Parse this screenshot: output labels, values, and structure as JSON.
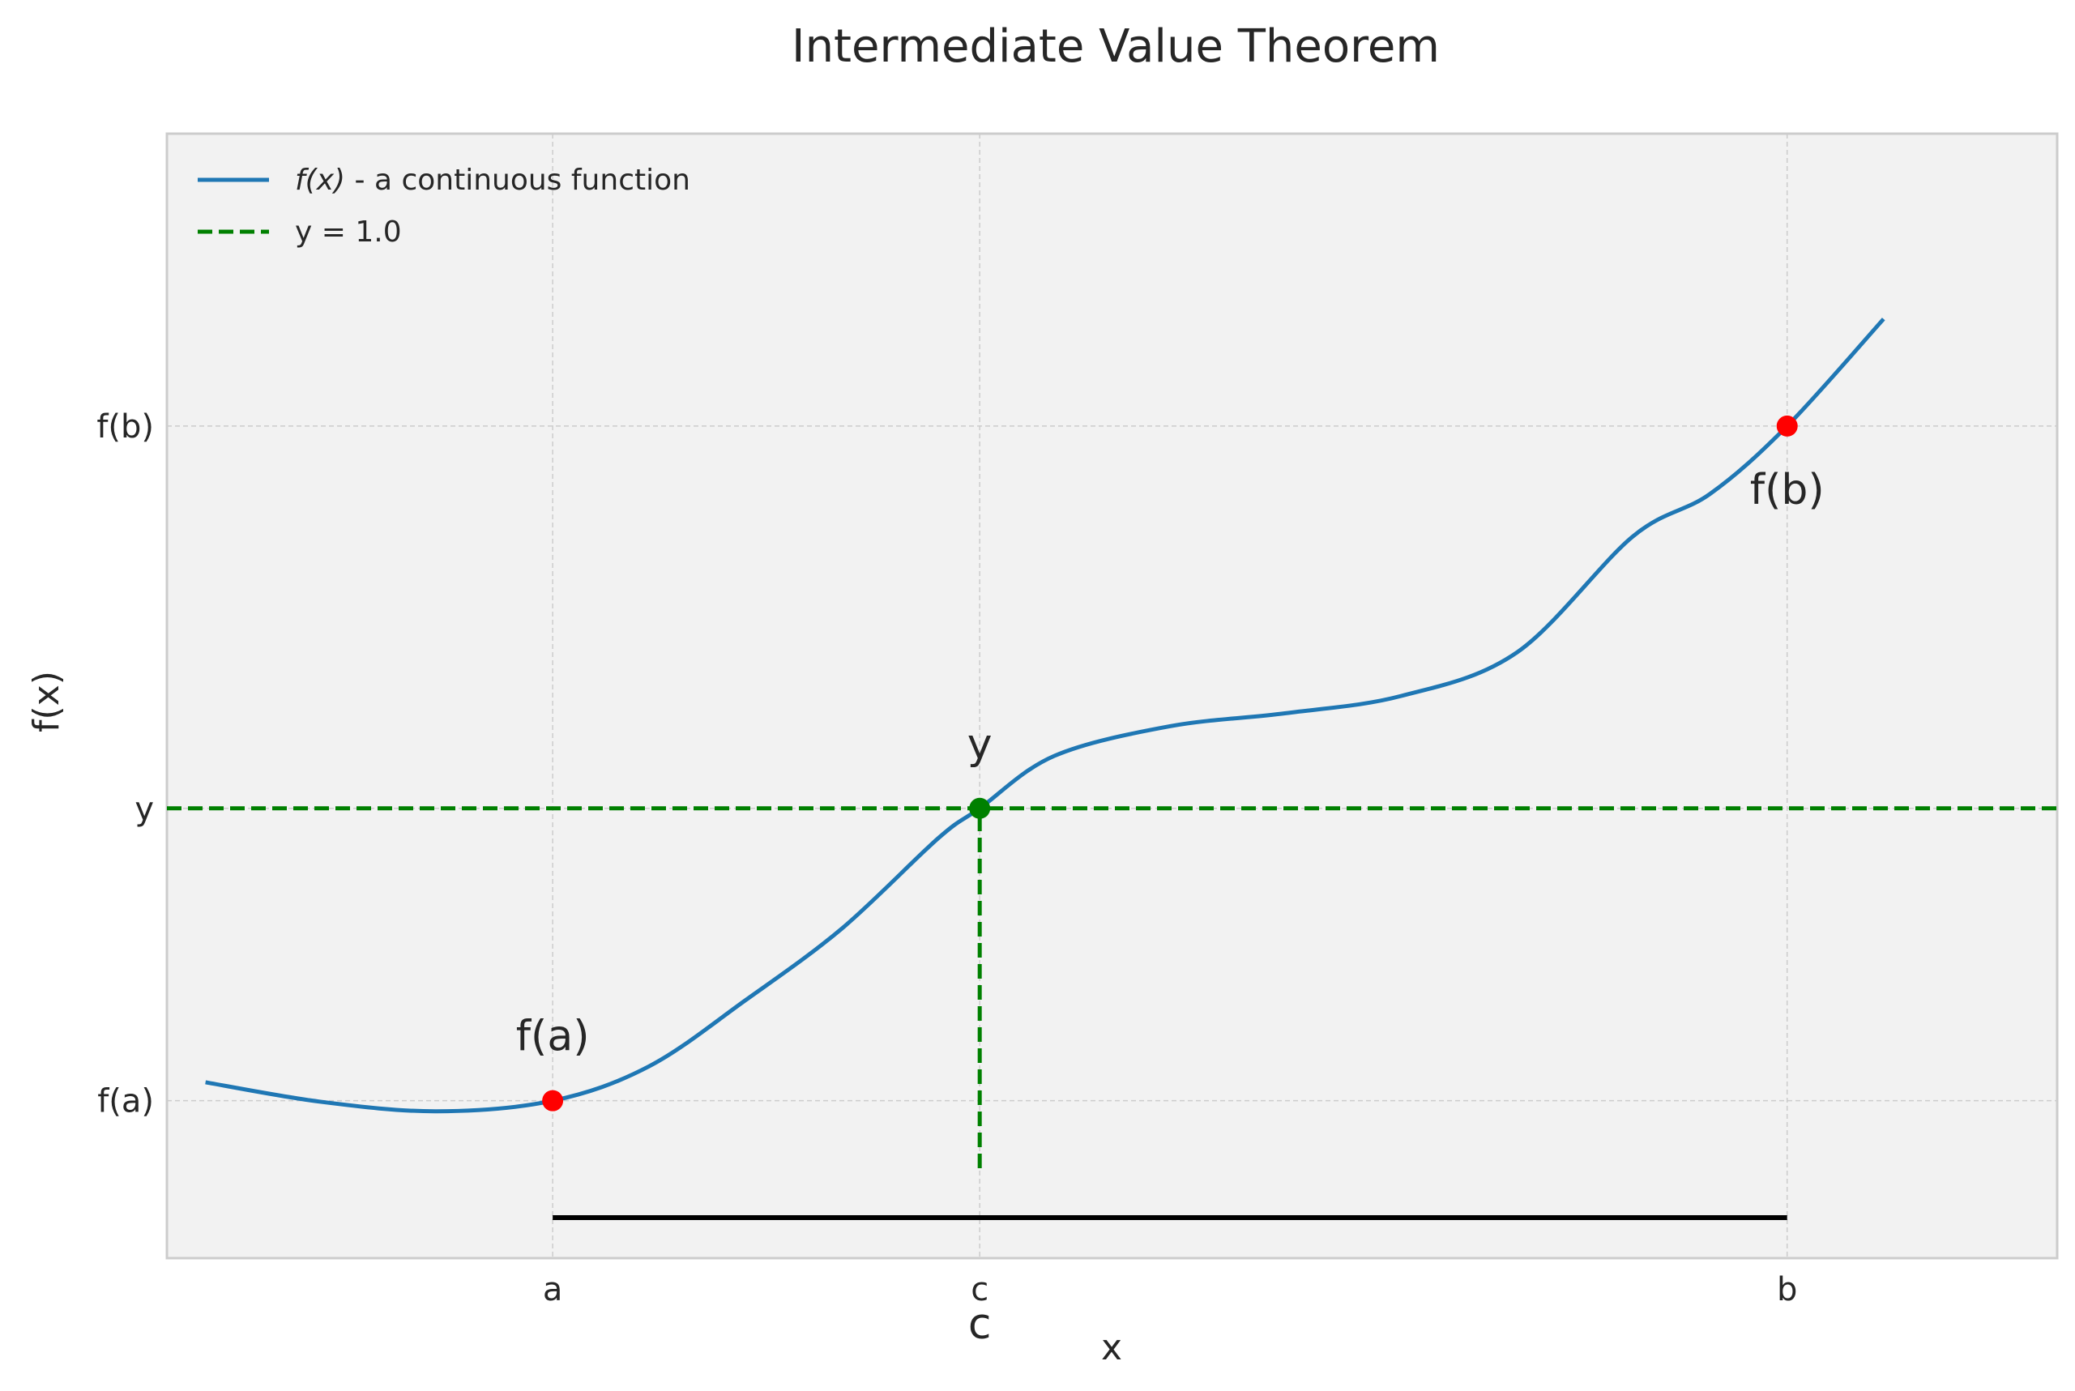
{
  "chart_data": {
    "type": "line",
    "title": "Intermediate Value Theorem",
    "xlabel": "x",
    "ylabel": "f(x)",
    "xlim": [
      -1.0,
      3.9
    ],
    "ylim": [
      -1.0,
      4.0
    ],
    "grid": true,
    "legend_position": "top-left",
    "x_ticks": [
      {
        "value": 0.0,
        "label": "a"
      },
      {
        "value": 1.107,
        "label": "c"
      },
      {
        "value": 3.2,
        "label": "b"
      }
    ],
    "y_ticks": [
      {
        "value": -0.3,
        "label": "f(a)"
      },
      {
        "value": 1.0,
        "label": "y"
      },
      {
        "value": 2.7,
        "label": "f(b)"
      }
    ],
    "series": [
      {
        "name": "f(x) - a continuous function",
        "legend_main": "f(x)",
        "legend_rest": " - a continuous function",
        "color": "#1f77b4",
        "style": "solid",
        "x": [
          -0.9,
          -0.6,
          -0.3,
          0.0,
          0.25,
          0.5,
          0.75,
          1.0,
          1.107,
          1.3,
          1.6,
          1.9,
          2.2,
          2.5,
          2.8,
          3.0,
          3.2,
          3.45
        ],
        "y": [
          -0.218,
          -0.305,
          -0.347,
          -0.3,
          -0.147,
          0.147,
          0.466,
          0.868,
          1.0,
          1.233,
          1.365,
          1.423,
          1.5,
          1.694,
          2.209,
          2.398,
          2.7,
          3.176
        ]
      },
      {
        "name": "y = 1.0",
        "color": "#008000",
        "style": "dashed",
        "y": 1.0
      }
    ],
    "vertical_dashed": {
      "x": 1.107,
      "y_from": -0.6,
      "y_to": 1.0,
      "color": "#008000"
    },
    "interval_segment": {
      "x_from": 0.0,
      "x_to": 3.2,
      "y": -0.82,
      "color": "#000000"
    },
    "points": [
      {
        "x": 0.0,
        "y": -0.3,
        "label": "f(a)",
        "color": "#ff0000",
        "label_pos": "above"
      },
      {
        "x": 1.107,
        "y": 1.0,
        "label": "y",
        "color": "#008000",
        "label_pos": "above"
      },
      {
        "x": 3.2,
        "y": 2.7,
        "label": "f(b)",
        "color": "#ff0000",
        "label_pos": "below"
      }
    ],
    "below_axis_label": {
      "x": 1.107,
      "text": "c"
    }
  }
}
